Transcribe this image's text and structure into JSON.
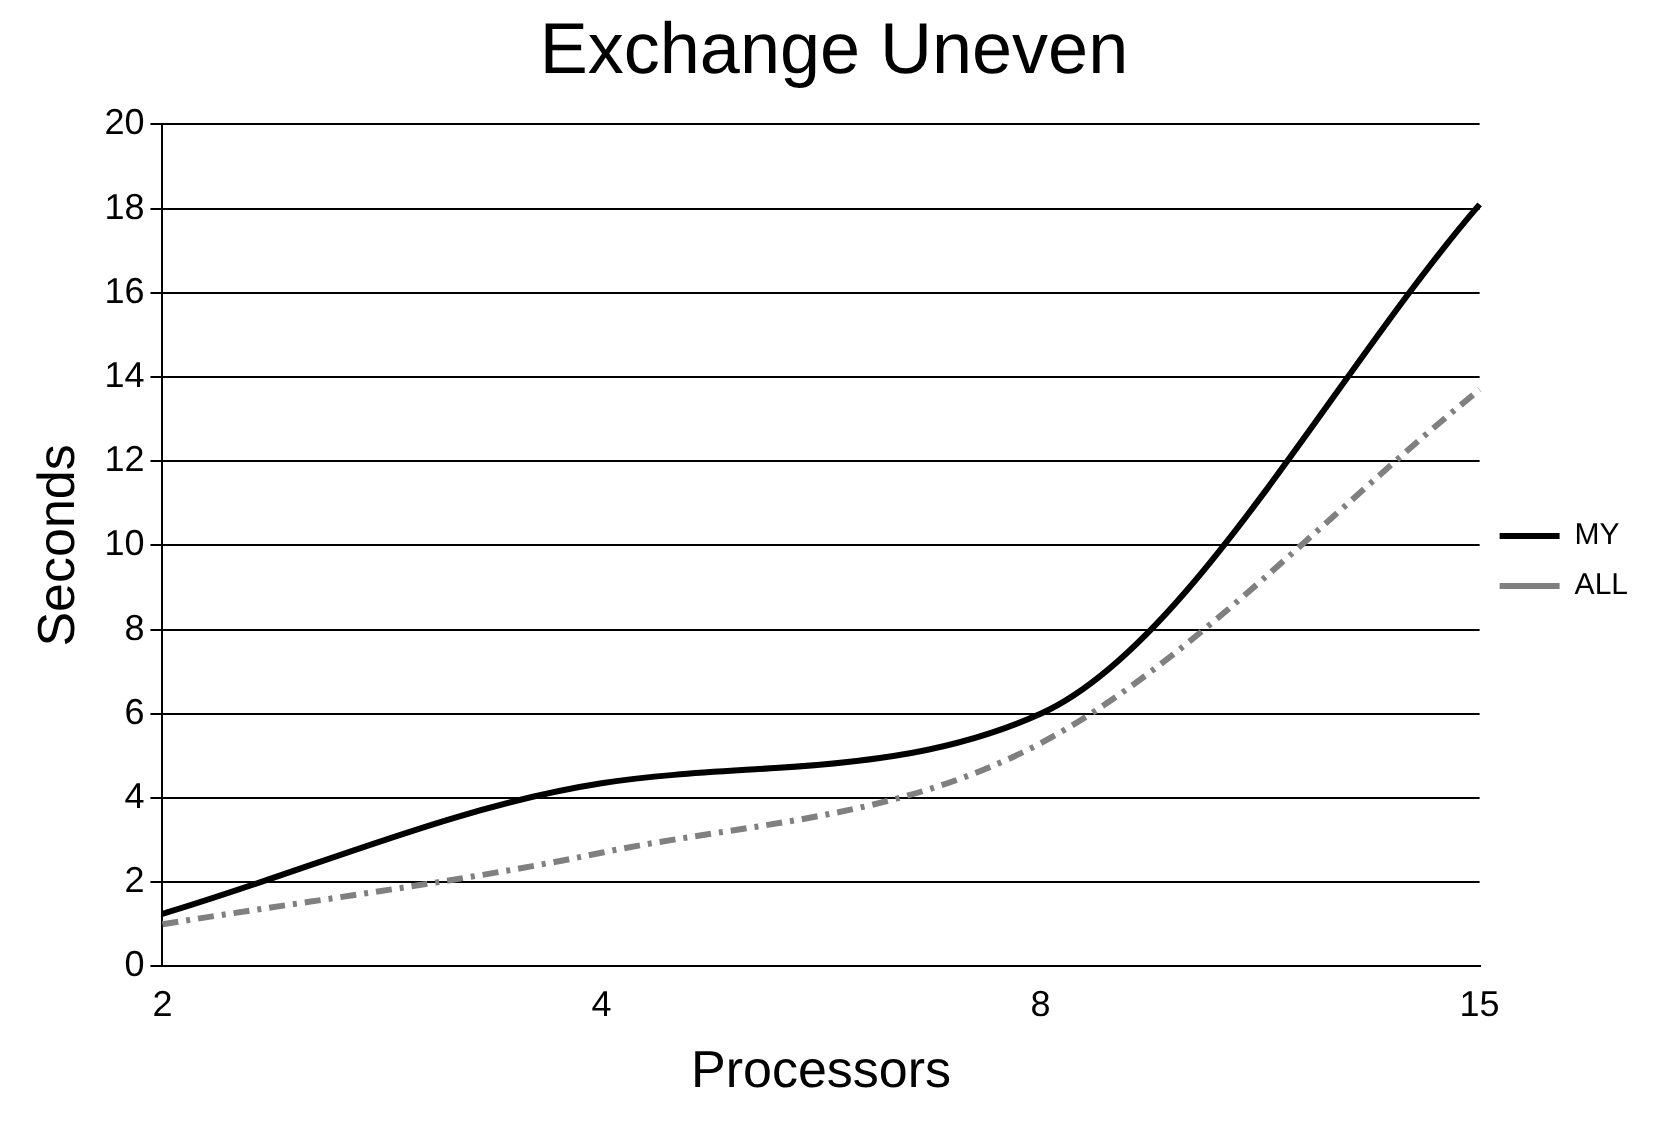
{
  "chart_data": {
    "type": "line",
    "title": "Exchange Uneven",
    "xlabel": "Processors",
    "ylabel": "Seconds",
    "categories": [
      "2",
      "4",
      "8",
      "15"
    ],
    "series": [
      {
        "name": "MY",
        "color": "#000000",
        "values": [
          1.25,
          4.35,
          6.0,
          18.1
        ],
        "line_style": "solid"
      },
      {
        "name": "ALL",
        "color": "#808080",
        "values": [
          1.0,
          2.7,
          5.3,
          13.7
        ],
        "line_style": "dashed"
      }
    ],
    "ylim": [
      0,
      20
    ],
    "yticks": [
      0,
      2,
      4,
      6,
      8,
      10,
      12,
      14,
      16,
      18,
      20
    ],
    "grid": "y",
    "legend": "right",
    "marker": "none"
  }
}
